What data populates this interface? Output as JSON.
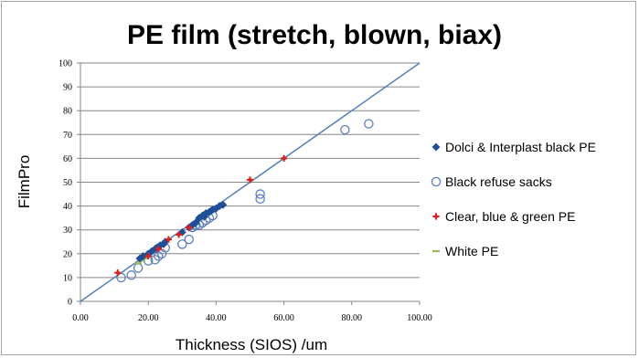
{
  "chart_data": {
    "type": "scatter",
    "title": "PE film (stretch, blown, biax)",
    "xlabel": "Thickness (SIOS) /um",
    "ylabel": "FilmPro",
    "xlim": [
      0,
      100
    ],
    "ylim": [
      0,
      100
    ],
    "x_ticks": [
      "0.00",
      "20.00",
      "40.00",
      "60.00",
      "80.00",
      "100.00"
    ],
    "y_ticks": [
      "0",
      "10",
      "20",
      "30",
      "40",
      "50",
      "60",
      "70",
      "80",
      "90",
      "100"
    ],
    "grid": "horizontal",
    "legend_position": "right",
    "reference_line": {
      "x": [
        0,
        100
      ],
      "y": [
        0,
        100
      ],
      "color": "#4f81bd"
    },
    "series": [
      {
        "name": "Dolci & Interplast black PE",
        "marker": "diamond",
        "color": "#1f4e99",
        "points": [
          [
            17.5,
            18
          ],
          [
            18.5,
            19
          ],
          [
            20,
            20
          ],
          [
            21,
            21
          ],
          [
            22,
            22
          ],
          [
            22.5,
            22.5
          ],
          [
            23.5,
            23.5
          ],
          [
            24.5,
            24
          ],
          [
            25,
            25
          ],
          [
            30,
            29
          ],
          [
            32,
            31
          ],
          [
            33,
            32
          ],
          [
            34,
            33
          ],
          [
            35,
            35
          ],
          [
            36,
            36
          ],
          [
            36.5,
            35.5
          ],
          [
            37,
            37
          ],
          [
            38,
            37.5
          ],
          [
            38.5,
            38
          ],
          [
            39,
            38.5
          ],
          [
            40,
            39
          ],
          [
            41,
            40
          ],
          [
            42,
            40.5
          ]
        ]
      },
      {
        "name": "Black refuse sacks",
        "marker": "circle-open",
        "color": "#5b7fbd",
        "points": [
          [
            12,
            10
          ],
          [
            15,
            11
          ],
          [
            17,
            14
          ],
          [
            20,
            17
          ],
          [
            22,
            17.5
          ],
          [
            23,
            19
          ],
          [
            24,
            20
          ],
          [
            25,
            22.5
          ],
          [
            30,
            24
          ],
          [
            32,
            26
          ],
          [
            33,
            31
          ],
          [
            34,
            32
          ],
          [
            35,
            32
          ],
          [
            36,
            33
          ],
          [
            37,
            34
          ],
          [
            38,
            35
          ],
          [
            39,
            36
          ],
          [
            53,
            43
          ],
          [
            53,
            45
          ],
          [
            78,
            72
          ],
          [
            85,
            74.5
          ]
        ]
      },
      {
        "name": "Clear, blue & green PE",
        "marker": "star",
        "color": "#e0201b",
        "points": [
          [
            11,
            12
          ],
          [
            20,
            19
          ],
          [
            23,
            22
          ],
          [
            26,
            26
          ],
          [
            29,
            28
          ],
          [
            32,
            31
          ],
          [
            50,
            51
          ],
          [
            60,
            60
          ]
        ]
      },
      {
        "name": "White PE",
        "marker": "dash",
        "color": "#9bbb59",
        "points": [
          [
            17,
            16
          ],
          [
            18,
            17
          ],
          [
            19,
            18
          ],
          [
            20,
            19
          ]
        ]
      }
    ]
  }
}
